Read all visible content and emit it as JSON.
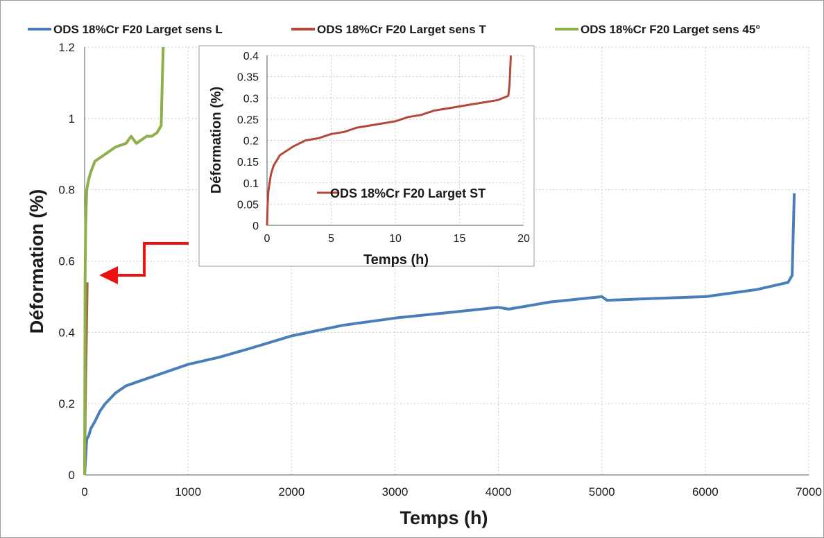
{
  "colors": {
    "blue": "#4a7ebb",
    "red": "#b5483b",
    "green": "#8db04a",
    "brown": "#a06a3c",
    "arrow": "#ee1111"
  },
  "chart_data": [
    {
      "type": "line",
      "title": "",
      "xlabel": "Temps (h)",
      "ylabel": "Déformation (%)",
      "xlim": [
        0,
        7000
      ],
      "ylim": [
        0,
        1.2
      ],
      "x_ticks": [
        "0",
        "1000",
        "2000",
        "3000",
        "4000",
        "5000",
        "6000",
        "7000"
      ],
      "y_ticks": [
        "0",
        "0.2",
        "0.4",
        "0.6",
        "0.8",
        "1",
        "1.2"
      ],
      "grid": true,
      "legend_position": "top",
      "series": [
        {
          "name": "ODS 18%Cr F20 Larget sens L",
          "color": "#4a7ebb",
          "x": [
            0,
            20,
            40,
            60,
            100,
            150,
            200,
            300,
            400,
            500,
            700,
            1000,
            1300,
            1600,
            2000,
            2500,
            3000,
            3500,
            4000,
            4100,
            4500,
            5000,
            5050,
            5500,
            6000,
            6500,
            6800,
            6840,
            6860
          ],
          "y": [
            0.0,
            0.1,
            0.11,
            0.13,
            0.15,
            0.18,
            0.2,
            0.23,
            0.25,
            0.26,
            0.28,
            0.31,
            0.33,
            0.355,
            0.39,
            0.42,
            0.44,
            0.455,
            0.47,
            0.465,
            0.485,
            0.5,
            0.49,
            0.495,
            0.5,
            0.52,
            0.54,
            0.56,
            0.79
          ]
        },
        {
          "name": "ODS 18%Cr F20 Larget sens T",
          "color": "#a06a3c",
          "x": [
            0,
            5,
            10,
            15,
            20,
            25
          ],
          "y": [
            0.0,
            0.15,
            0.28,
            0.35,
            0.45,
            0.54
          ]
        },
        {
          "name": "ODS 18%Cr F20 Larget sens 45°",
          "color": "#8db04a",
          "x": [
            0,
            5,
            10,
            20,
            40,
            60,
            100,
            150,
            200,
            300,
            400,
            450,
            500,
            550,
            600,
            650,
            700,
            740,
            750,
            760
          ],
          "y": [
            0.0,
            0.55,
            0.7,
            0.8,
            0.83,
            0.85,
            0.88,
            0.89,
            0.9,
            0.92,
            0.93,
            0.95,
            0.93,
            0.94,
            0.95,
            0.95,
            0.96,
            0.98,
            1.1,
            1.2
          ]
        }
      ]
    },
    {
      "type": "line",
      "title": "",
      "xlabel": "Temps  (h)",
      "ylabel": "Déformation (%)",
      "xlim": [
        0,
        20
      ],
      "ylim": [
        0,
        0.4
      ],
      "x_ticks": [
        "0",
        "5",
        "10",
        "15",
        "20"
      ],
      "y_ticks": [
        "0",
        "0.05",
        "0.1",
        "0.15",
        "0.2",
        "0.25",
        "0.3",
        "0.35",
        "0.4"
      ],
      "grid": true,
      "legend_position": "center",
      "series": [
        {
          "name": "ODS 18%Cr F20 Larget ST",
          "color": "#b5483b",
          "x": [
            0,
            0.05,
            0.1,
            0.2,
            0.3,
            0.5,
            0.8,
            1.0,
            1.5,
            2.0,
            3.0,
            4.0,
            5.0,
            6.0,
            7.0,
            8.0,
            9.0,
            10.0,
            11.0,
            12.0,
            13.0,
            14.0,
            15.0,
            16.0,
            17.0,
            18.0,
            18.8,
            18.9,
            19.0
          ],
          "y": [
            0.0,
            0.05,
            0.08,
            0.1,
            0.12,
            0.14,
            0.155,
            0.165,
            0.175,
            0.185,
            0.2,
            0.205,
            0.215,
            0.22,
            0.23,
            0.235,
            0.24,
            0.245,
            0.255,
            0.26,
            0.27,
            0.275,
            0.28,
            0.285,
            0.29,
            0.295,
            0.305,
            0.33,
            0.4
          ]
        }
      ]
    }
  ]
}
